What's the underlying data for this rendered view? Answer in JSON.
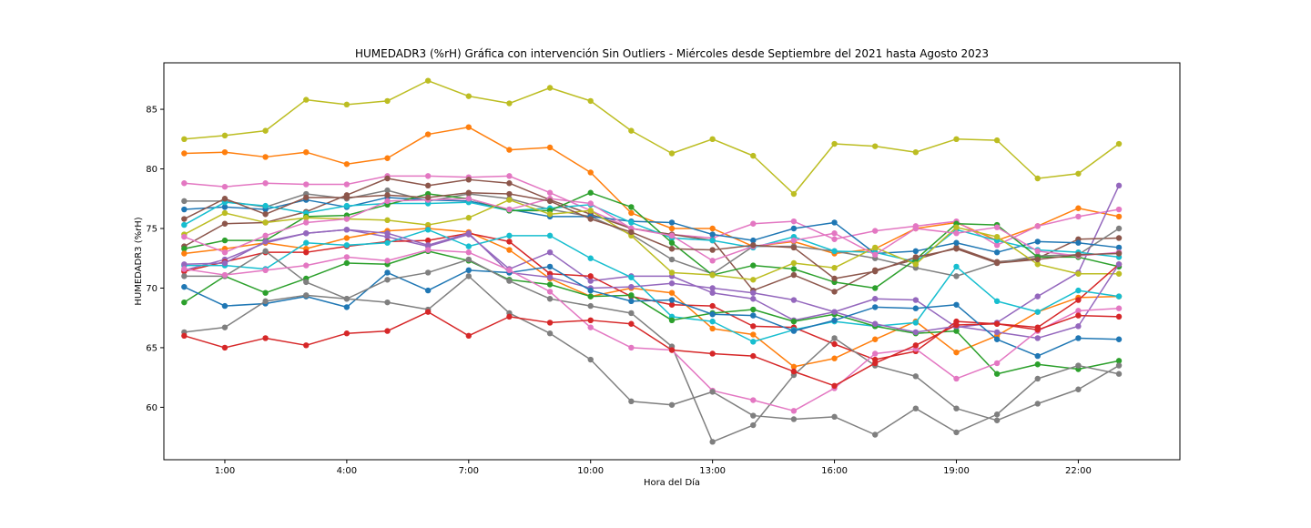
{
  "chart_data": {
    "type": "line",
    "title": "HUMEDADR3 (%rH) Gráfica con intervención Sin Outliers - Miércoles desde Septiembre del 2021 hasta Agosto 2023",
    "xlabel": "Hora del Día",
    "ylabel": "HUMEDADR3 (%rH)",
    "x": [
      0,
      1,
      2,
      3,
      4,
      5,
      6,
      7,
      8,
      9,
      10,
      11,
      12,
      13,
      14,
      15,
      16,
      17,
      18,
      19,
      20,
      21,
      22,
      23
    ],
    "xlim": [
      -0.5,
      24.5
    ],
    "ylim": [
      55.6,
      88.9
    ],
    "xticks": [
      1,
      4,
      7,
      10,
      13,
      16,
      19,
      22
    ],
    "xtick_labels": [
      "1:00",
      "4:00",
      "7:00",
      "10:00",
      "13:00",
      "16:00",
      "19:00",
      "22:00"
    ],
    "yticks": [
      60,
      65,
      70,
      75,
      80,
      85
    ],
    "ytick_labels": [
      "60",
      "65",
      "70",
      "75",
      "80",
      "85"
    ],
    "grid": false,
    "legend": "none",
    "marker": "circle",
    "series": [
      {
        "color": "#bcbd22",
        "values": [
          82.5,
          82.8,
          83.2,
          85.8,
          85.4,
          85.7,
          87.4,
          86.1,
          85.5,
          86.8,
          85.7,
          83.2,
          81.3,
          82.5,
          81.1,
          77.9,
          82.1,
          81.9,
          81.4,
          82.5,
          82.4,
          79.2,
          79.6,
          82.1
        ]
      },
      {
        "color": "#ff7f0e",
        "values": [
          81.3,
          81.4,
          81.0,
          81.4,
          80.4,
          80.9,
          82.9,
          83.5,
          81.6,
          81.8,
          79.7,
          76.3,
          75.0,
          75.0,
          73.5,
          73.9,
          72.9,
          73.3,
          75.0,
          75.5,
          74.0,
          75.2,
          76.7,
          76.0
        ]
      },
      {
        "color": "#e377c2",
        "values": [
          78.8,
          78.5,
          78.8,
          78.7,
          78.7,
          79.4,
          79.4,
          79.3,
          79.4,
          78.0,
          76.5,
          75.0,
          74.5,
          74.2,
          75.4,
          75.6,
          74.1,
          74.8,
          75.2,
          75.6,
          73.6,
          75.2,
          76.0,
          76.6
        ]
      },
      {
        "color": "#9467bd",
        "values": [
          71.5,
          72.4,
          73.8,
          74.6,
          74.9,
          74.3,
          73.5,
          74.5,
          71.6,
          73.0,
          70.6,
          71.0,
          71.0,
          69.6,
          69.1,
          67.3,
          68.0,
          69.1,
          69.0,
          66.7,
          67.1,
          69.3,
          71.3,
          78.6
        ]
      },
      {
        "color": "#8c564b",
        "values": [
          73.5,
          75.4,
          75.5,
          76.4,
          77.8,
          79.2,
          78.6,
          79.1,
          78.8,
          77.4,
          76.2,
          75.0,
          74.5,
          74.0,
          69.8,
          71.1,
          69.7,
          71.5,
          72.4,
          73.4,
          72.2,
          72.5,
          74.1,
          74.2
        ]
      },
      {
        "color": "#7f7f7f",
        "values": [
          77.3,
          77.3,
          76.8,
          77.9,
          77.5,
          78.2,
          77.3,
          77.9,
          77.5,
          76.6,
          76.0,
          74.5,
          72.4,
          71.2,
          73.5,
          73.5,
          73.1,
          72.5,
          71.7,
          71.0,
          72.1,
          72.7,
          72.8,
          75.0
        ]
      },
      {
        "color": "#1f77b4",
        "values": [
          76.6,
          76.8,
          76.6,
          77.4,
          76.8,
          77.6,
          77.4,
          77.3,
          76.6,
          76.0,
          76.0,
          75.6,
          75.5,
          74.5,
          74.0,
          75.0,
          75.5,
          72.9,
          73.1,
          73.8,
          73.0,
          73.9,
          73.8,
          73.4
        ]
      },
      {
        "color": "#17becf",
        "values": [
          75.3,
          77.2,
          76.9,
          76.3,
          76.9,
          77.1,
          77.1,
          77.2,
          76.5,
          76.7,
          77.0,
          75.5,
          74.2,
          74.0,
          73.4,
          74.3,
          73.1,
          73.0,
          72.2,
          74.9,
          74.0,
          73.2,
          73.0,
          72.6
        ]
      },
      {
        "color": "#2ca02c",
        "values": [
          73.3,
          74.0,
          74.0,
          76.0,
          76.1,
          77.0,
          77.9,
          77.5,
          76.5,
          76.5,
          78.0,
          76.8,
          73.8,
          71.1,
          71.9,
          71.6,
          70.5,
          70.0,
          72.4,
          75.4,
          75.3,
          72.6,
          72.6,
          71.8
        ]
      },
      {
        "color": "#bcbd22",
        "values": [
          74.5,
          76.3,
          75.5,
          75.9,
          75.8,
          75.7,
          75.3,
          75.9,
          77.4,
          76.2,
          76.5,
          74.4,
          71.3,
          71.1,
          70.7,
          72.1,
          71.7,
          73.4,
          72.0,
          75.1,
          74.3,
          72.0,
          71.2,
          71.2
        ]
      },
      {
        "color": "#ff7f0e",
        "values": [
          72.9,
          73.3,
          73.8,
          73.3,
          74.2,
          74.8,
          75.0,
          74.7,
          73.2,
          70.8,
          69.3,
          70.0,
          69.6,
          66.6,
          66.1,
          63.4,
          64.1,
          65.7,
          67.2,
          64.6,
          66.0,
          68.0,
          69.2,
          69.3
        ]
      },
      {
        "color": "#d62728",
        "values": [
          71.4,
          72.2,
          73.0,
          73.0,
          73.5,
          73.9,
          74.0,
          74.6,
          73.9,
          71.2,
          71.0,
          69.3,
          68.6,
          68.5,
          66.8,
          66.7,
          65.3,
          64.0,
          64.7,
          67.2,
          67.0,
          66.7,
          69.0,
          72.0
        ]
      },
      {
        "color": "#e377c2",
        "values": [
          74.3,
          73.0,
          74.4,
          75.5,
          75.8,
          77.3,
          77.4,
          77.5,
          76.6,
          77.5,
          77.1,
          75.0,
          74.4,
          72.3,
          73.5,
          74.0,
          74.6,
          72.8,
          75.0,
          74.6,
          75.1,
          73.1,
          72.7,
          73.0
        ]
      },
      {
        "color": "#8c564b",
        "values": [
          75.8,
          77.5,
          76.2,
          77.6,
          77.6,
          77.8,
          77.6,
          78.0,
          77.9,
          77.3,
          75.8,
          74.7,
          73.3,
          73.2,
          73.6,
          73.4,
          70.8,
          71.4,
          72.6,
          73.3,
          72.1,
          72.4,
          72.8,
          72.9
        ]
      },
      {
        "color": "#17becf",
        "values": [
          71.9,
          71.9,
          71.6,
          73.8,
          73.6,
          73.8,
          74.9,
          73.5,
          74.4,
          74.4,
          72.5,
          70.9,
          67.6,
          67.2,
          65.5,
          66.5,
          67.2,
          66.8,
          67.1,
          71.8,
          68.9,
          68.0,
          69.8,
          69.3
        ]
      },
      {
        "color": "#2ca02c",
        "values": [
          68.8,
          71.0,
          69.6,
          70.8,
          72.1,
          72.0,
          73.1,
          72.3,
          70.7,
          70.3,
          69.3,
          69.4,
          67.3,
          67.9,
          68.2,
          67.2,
          67.8,
          66.8,
          66.2,
          66.4,
          62.8,
          63.6,
          63.2,
          63.9
        ]
      },
      {
        "color": "#9467bd",
        "values": [
          72.0,
          72.1,
          73.9,
          74.6,
          74.9,
          74.6,
          73.6,
          74.6,
          71.3,
          70.9,
          70.0,
          70.1,
          70.4,
          70.0,
          69.6,
          69.0,
          68.0,
          67.0,
          66.3,
          66.8,
          66.3,
          65.8,
          66.8,
          72.0
        ]
      },
      {
        "color": "#1f77b4",
        "values": [
          70.1,
          68.5,
          68.7,
          69.3,
          68.4,
          71.3,
          69.8,
          71.5,
          71.3,
          71.8,
          69.8,
          68.9,
          69.0,
          67.8,
          67.7,
          66.4,
          67.3,
          68.4,
          68.3,
          68.6,
          65.7,
          64.3,
          65.8,
          65.7
        ]
      },
      {
        "color": "#7f7f7f",
        "values": [
          71.0,
          71.0,
          73.1,
          70.5,
          69.1,
          70.7,
          71.3,
          72.4,
          70.6,
          69.1,
          68.5,
          67.9,
          65.1,
          57.1,
          58.5,
          62.7,
          65.8,
          63.5,
          62.6,
          59.9,
          58.9,
          60.3,
          61.5,
          63.5
        ]
      },
      {
        "color": "#e377c2",
        "values": [
          71.6,
          71.1,
          71.5,
          71.9,
          72.6,
          72.3,
          73.2,
          73.0,
          71.5,
          69.7,
          66.7,
          65.0,
          64.8,
          61.4,
          60.6,
          59.7,
          61.6,
          64.5,
          64.9,
          62.4,
          63.7,
          66.4,
          68.1,
          68.3
        ]
      },
      {
        "color": "#7f7f7f",
        "values": [
          66.3,
          66.7,
          68.9,
          69.4,
          69.1,
          68.8,
          68.2,
          71.0,
          67.9,
          66.2,
          64.0,
          60.5,
          60.2,
          61.3,
          59.3,
          59.0,
          59.2,
          57.7,
          59.9,
          57.9,
          59.4,
          62.4,
          63.5,
          62.8
        ]
      },
      {
        "color": "#d62728",
        "values": [
          66.0,
          65.0,
          65.8,
          65.2,
          66.2,
          66.4,
          68.0,
          66.0,
          67.6,
          67.1,
          67.3,
          67.0,
          64.8,
          64.5,
          64.3,
          63.0,
          61.8,
          63.7,
          65.2,
          66.9,
          67.0,
          66.5,
          67.7,
          67.6
        ]
      }
    ]
  }
}
